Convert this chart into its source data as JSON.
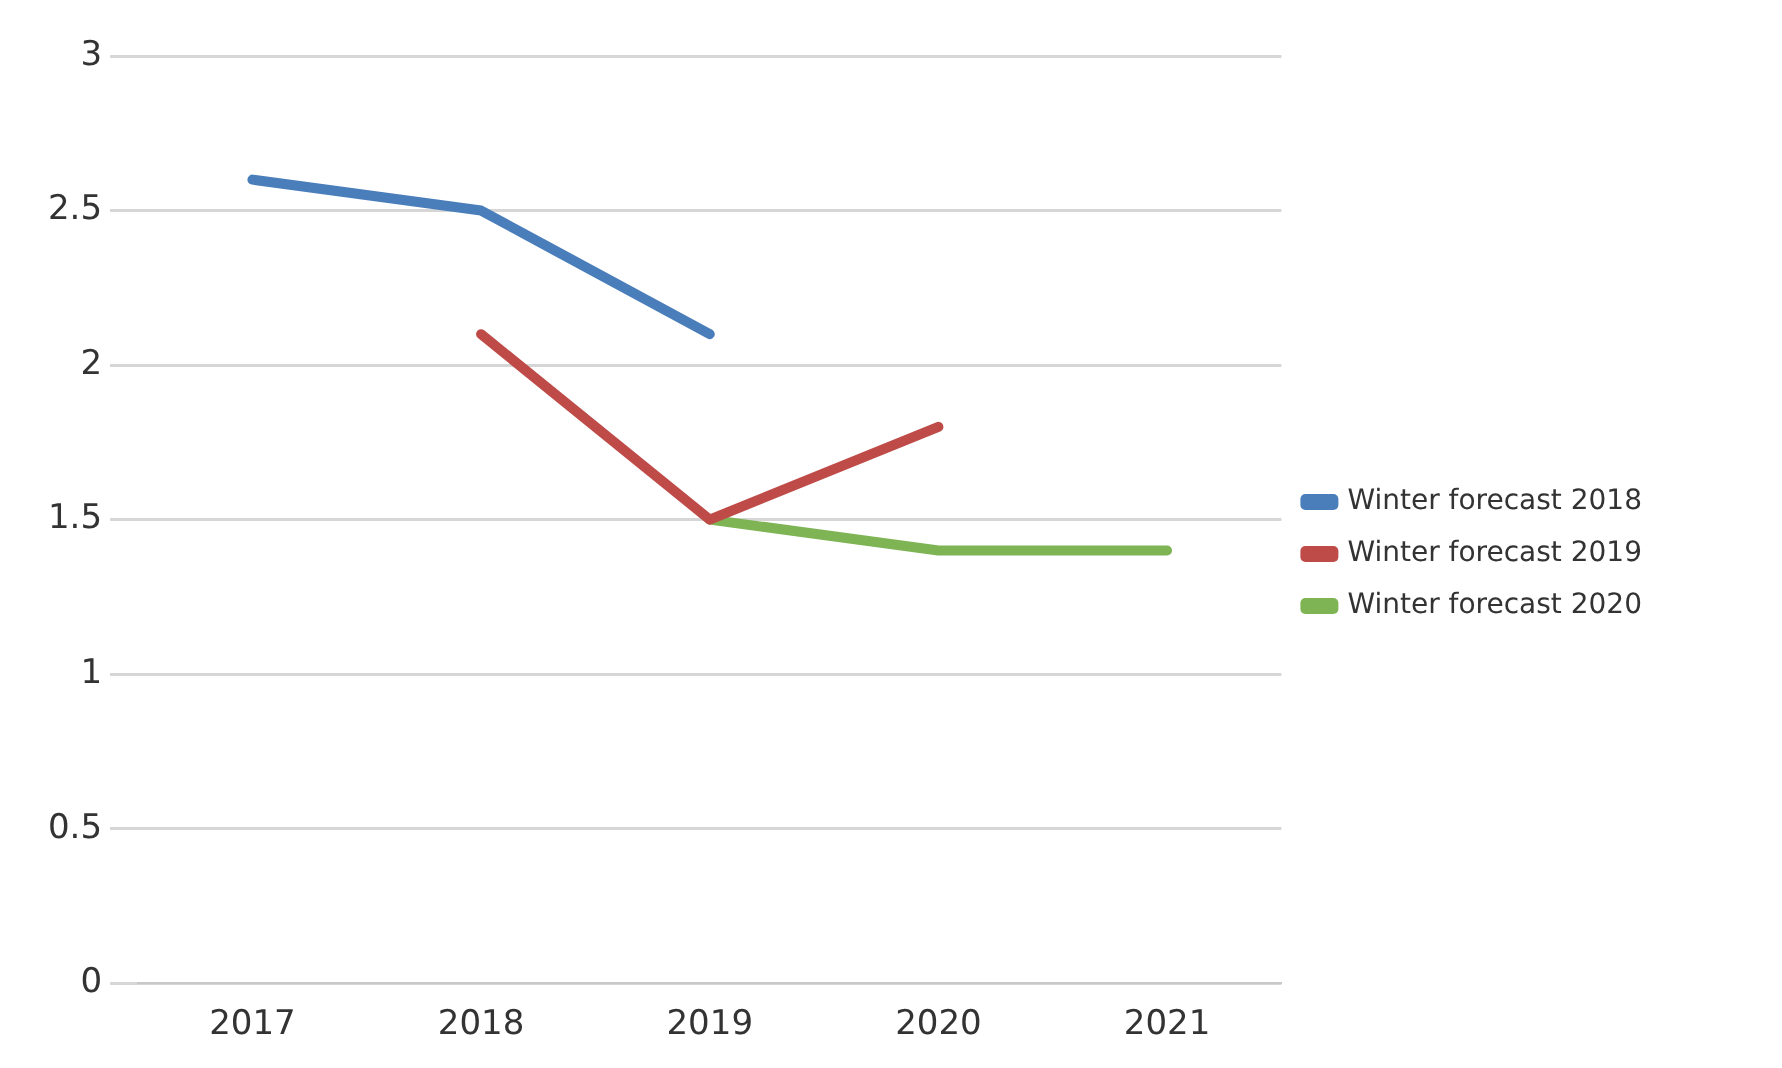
{
  "chart_data": {
    "type": "line",
    "categories": [
      "2017",
      "2018",
      "2019",
      "2020",
      "2021"
    ],
    "series": [
      {
        "name": "Winter forecast 2018",
        "color": "#4a7ebb",
        "values": [
          2.6,
          2.5,
          2.1,
          null,
          null
        ]
      },
      {
        "name": "Winter forecast 2019",
        "color": "#be4b48",
        "values": [
          null,
          2.1,
          1.5,
          1.8,
          null
        ]
      },
      {
        "name": "Winter forecast 2020",
        "color": "#7eb454",
        "values": [
          null,
          null,
          1.5,
          1.4,
          1.4
        ]
      }
    ],
    "ylim": [
      0,
      3
    ],
    "yticks": [
      0,
      0.5,
      1,
      1.5,
      2,
      2.5,
      3
    ],
    "grid": "y",
    "legend": "right",
    "marker": "none",
    "line_style": "solid"
  }
}
